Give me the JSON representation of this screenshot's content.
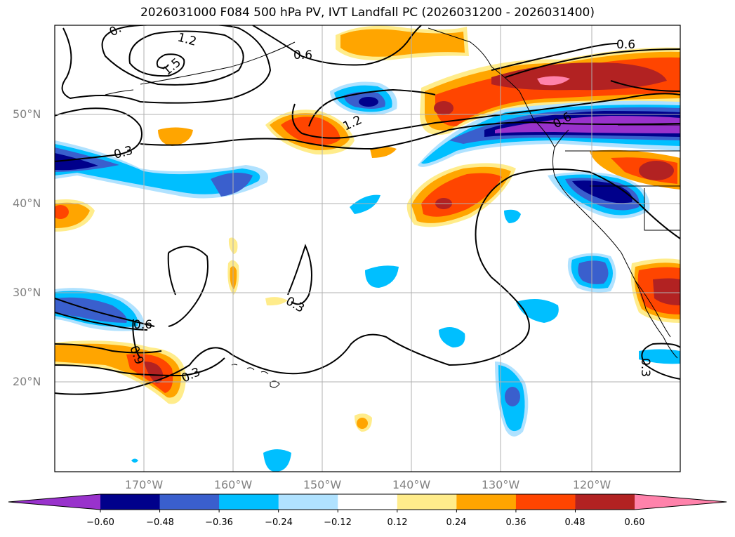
{
  "title": "2026031000 F084 500 hPa PV, IVT Landfall PC (2026031200 - 2026031400)",
  "axes": {
    "lat_labels": [
      "50°N",
      "40°N",
      "30°N",
      "20°N"
    ],
    "lon_labels": [
      "170°W",
      "160°W",
      "150°W",
      "140°W",
      "130°W",
      "120°W"
    ]
  },
  "contour_labels": [
    "0.",
    "1.2",
    "1.5",
    "0.6",
    "1.2",
    "0.3",
    "0.6",
    "0.9",
    "0.3",
    "0.3",
    "0.6",
    "0.6",
    "0.3"
  ],
  "colorbar": {
    "ticks": [
      "−0.60",
      "−0.48",
      "−0.36",
      "−0.24",
      "−0.12",
      "0.12",
      "0.24",
      "0.36",
      "0.48",
      "0.60"
    ],
    "colors": [
      "#9932cc",
      "#00008b",
      "#3a5fcd",
      "#00bfff",
      "#b0e2ff",
      "#ffffff",
      "#ffec8b",
      "#ffa500",
      "#ff4500",
      "#b22222",
      "#ff82ab"
    ]
  }
}
